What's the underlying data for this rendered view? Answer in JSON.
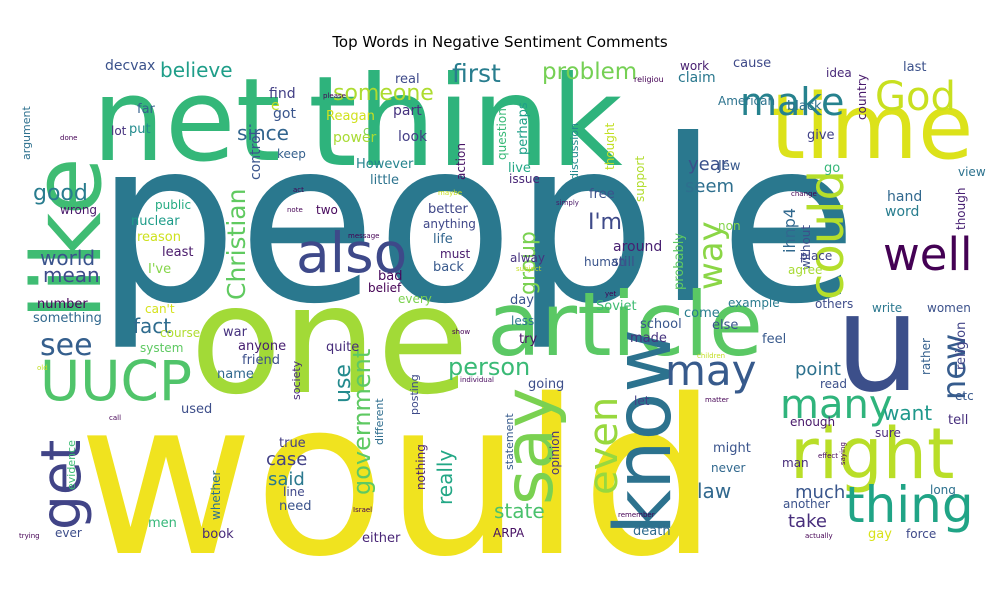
{
  "chart_data": {
    "type": "wordcloud",
    "title": "Top Words in Negative Sentiment Comments",
    "colormap": "viridis",
    "words": [
      {
        "text": "people",
        "color": "#2a788e"
      },
      {
        "text": "would",
        "color": "#f0e31f"
      },
      {
        "text": "one",
        "color": "#a2da37"
      },
      {
        "text": "like",
        "color": "#3fbc73"
      },
      {
        "text": "think",
        "color": "#2eb37c"
      },
      {
        "text": "net",
        "color": "#34b779"
      },
      {
        "text": "time",
        "color": "#dce21a"
      },
      {
        "text": "article",
        "color": "#5ac864"
      },
      {
        "text": "u",
        "color": "#3c4f8a"
      },
      {
        "text": "know",
        "color": "#2c728e"
      },
      {
        "text": "say",
        "color": "#7ad151"
      },
      {
        "text": "right",
        "color": "#b9de28"
      },
      {
        "text": "get",
        "color": "#414487"
      },
      {
        "text": "UUCP",
        "color": "#50c46a"
      },
      {
        "text": "also",
        "color": "#3e4989"
      },
      {
        "text": "could",
        "color": "#b5de2b"
      },
      {
        "text": "well",
        "color": "#440154"
      },
      {
        "text": "thing",
        "color": "#20a486"
      },
      {
        "text": "God",
        "color": "#c8e020"
      },
      {
        "text": "make",
        "color": "#26828e"
      },
      {
        "text": "many",
        "color": "#2fb47c"
      },
      {
        "text": "may",
        "color": "#375a8c"
      },
      {
        "text": "even",
        "color": "#98d83e"
      },
      {
        "text": "new",
        "color": "#365c8d"
      },
      {
        "text": "see",
        "color": "#355f8d"
      },
      {
        "text": "way",
        "color": "#8bd646"
      },
      {
        "text": "first",
        "color": "#287d8e"
      },
      {
        "text": "problem",
        "color": "#75d054"
      },
      {
        "text": "someone",
        "color": "#addc30"
      },
      {
        "text": "believe",
        "color": "#1f9e89"
      },
      {
        "text": "world",
        "color": "#3a548c"
      },
      {
        "text": "good",
        "color": "#287c8e"
      },
      {
        "text": "since",
        "color": "#32658e"
      },
      {
        "text": "mean",
        "color": "#3e4c8a"
      },
      {
        "text": "Christian",
        "color": "#60ca60"
      },
      {
        "text": "government",
        "color": "#5ec962"
      },
      {
        "text": "fact",
        "color": "#2f6c8e"
      },
      {
        "text": "person",
        "color": "#3aba76"
      },
      {
        "text": "I'm",
        "color": "#3e4a89"
      },
      {
        "text": "group",
        "color": "#7ad151"
      },
      {
        "text": "seem",
        "color": "#2e6f8e"
      },
      {
        "text": "year",
        "color": "#3b518b"
      },
      {
        "text": "point",
        "color": "#2d718e"
      },
      {
        "text": "use",
        "color": "#238a8d"
      },
      {
        "text": "want",
        "color": "#1f988b"
      },
      {
        "text": "much",
        "color": "#39568c"
      },
      {
        "text": "really",
        "color": "#22a785"
      },
      {
        "text": "case",
        "color": "#424186"
      },
      {
        "text": "said",
        "color": "#2a788e"
      },
      {
        "text": "state",
        "color": "#4ac16d"
      },
      {
        "text": "law",
        "color": "#31688e"
      },
      {
        "text": "take",
        "color": "#472d7b"
      },
      {
        "text": "ihnp4",
        "color": "#31688e"
      },
      {
        "text": "decvax",
        "color": "#3b528b"
      },
      {
        "text": "real",
        "color": "#3e4989"
      },
      {
        "text": "part",
        "color": "#46337f"
      },
      {
        "text": "Reagan",
        "color": "#d0e11c"
      },
      {
        "text": "look",
        "color": "#433e85"
      },
      {
        "text": "got",
        "color": "#39558c"
      },
      {
        "text": "control",
        "color": "#3a548c"
      },
      {
        "text": "keep",
        "color": "#35608d"
      },
      {
        "text": "power",
        "color": "#a8db34"
      },
      {
        "text": "However",
        "color": "#25848e"
      },
      {
        "text": "little",
        "color": "#2c738e"
      },
      {
        "text": "live",
        "color": "#22a785"
      },
      {
        "text": "issue",
        "color": "#482677"
      },
      {
        "text": "two",
        "color": "#46085c"
      },
      {
        "text": "public",
        "color": "#25ab82"
      },
      {
        "text": "nuclear",
        "color": "#1e9c89"
      },
      {
        "text": "reason",
        "color": "#cde11d"
      },
      {
        "text": "least",
        "color": "#48186a"
      },
      {
        "text": "I've",
        "color": "#86d549"
      },
      {
        "text": "far",
        "color": "#35608d"
      },
      {
        "text": "lot",
        "color": "#46327e"
      },
      {
        "text": "put",
        "color": "#228b8d"
      },
      {
        "text": "wrong",
        "color": "#48186a"
      },
      {
        "text": "argument",
        "color": "#2d708e"
      },
      {
        "text": "find",
        "color": "#423f85"
      },
      {
        "text": "e",
        "color": "#c2df23"
      },
      {
        "text": "c",
        "color": "#7fd34e"
      },
      {
        "text": "action",
        "color": "#471365"
      },
      {
        "text": "question",
        "color": "#38b977"
      },
      {
        "text": "perhaps",
        "color": "#1fa088"
      },
      {
        "text": "discussion",
        "color": "#238a8d"
      },
      {
        "text": "thought",
        "color": "#c2df23"
      },
      {
        "text": "support",
        "color": "#b2dd2d"
      },
      {
        "text": "probably",
        "color": "#5ec962"
      },
      {
        "text": "human",
        "color": "#3a548c"
      },
      {
        "text": "free",
        "color": "#3b528b"
      },
      {
        "text": "better",
        "color": "#3f4788"
      },
      {
        "text": "anything",
        "color": "#3f4788"
      },
      {
        "text": "life",
        "color": "#32658e"
      },
      {
        "text": "must",
        "color": "#481b6d"
      },
      {
        "text": "still",
        "color": "#3c4f8a"
      },
      {
        "text": "around",
        "color": "#482071"
      },
      {
        "text": "back",
        "color": "#38598c"
      },
      {
        "text": "non",
        "color": "#84d44b"
      },
      {
        "text": "Jew",
        "color": "#38588c"
      },
      {
        "text": "American",
        "color": "#2c738e"
      },
      {
        "text": "work",
        "color": "#482071"
      },
      {
        "text": "claim",
        "color": "#2a788e"
      },
      {
        "text": "cause",
        "color": "#3e4989"
      },
      {
        "text": "last",
        "color": "#3b518b"
      },
      {
        "text": "idea",
        "color": "#482878"
      },
      {
        "text": "country",
        "color": "#481a6c"
      },
      {
        "text": "black",
        "color": "#2e6e8e"
      },
      {
        "text": "give",
        "color": "#414287"
      },
      {
        "text": "go",
        "color": "#35b779"
      },
      {
        "text": "view",
        "color": "#2c728e"
      },
      {
        "text": "hand",
        "color": "#31688e"
      },
      {
        "text": "word",
        "color": "#287d8e"
      },
      {
        "text": "though",
        "color": "#482173"
      },
      {
        "text": "without",
        "color": "#3c4f8a"
      },
      {
        "text": "place",
        "color": "#414487"
      },
      {
        "text": "agree",
        "color": "#a8db34"
      },
      {
        "text": "others",
        "color": "#3e4c8a"
      },
      {
        "text": "example",
        "color": "#297b8e"
      },
      {
        "text": "write",
        "color": "#2a778e"
      },
      {
        "text": "women",
        "color": "#3b518b"
      },
      {
        "text": "religion",
        "color": "#414487"
      },
      {
        "text": "rather",
        "color": "#35608d"
      },
      {
        "text": "read",
        "color": "#3c508b"
      },
      {
        "text": "etc",
        "color": "#38588c"
      },
      {
        "text": "tell",
        "color": "#472f7d"
      },
      {
        "text": "sure",
        "color": "#4d2d7c"
      },
      {
        "text": "feel",
        "color": "#38598c"
      },
      {
        "text": "enough",
        "color": "#48186a"
      },
      {
        "text": "might",
        "color": "#3a548c"
      },
      {
        "text": "never",
        "color": "#31688e"
      },
      {
        "text": "man",
        "color": "#472c7a"
      },
      {
        "text": "another",
        "color": "#3b528b"
      },
      {
        "text": "long",
        "color": "#2c718e"
      },
      {
        "text": "force",
        "color": "#3e4989"
      },
      {
        "text": "gay",
        "color": "#d8e219"
      },
      {
        "text": "death",
        "color": "#2f6b8e"
      },
      {
        "text": "ARPA",
        "color": "#471164"
      },
      {
        "text": "either",
        "color": "#482576"
      },
      {
        "text": "book",
        "color": "#472a7a"
      },
      {
        "text": "men",
        "color": "#35b779"
      },
      {
        "text": "ever",
        "color": "#3d4d8a"
      },
      {
        "text": "evidence",
        "color": "#3dbc74"
      },
      {
        "text": "whether",
        "color": "#2d708e"
      },
      {
        "text": "need",
        "color": "#3a538b"
      },
      {
        "text": "line",
        "color": "#3f4889"
      },
      {
        "text": "true",
        "color": "#433d84"
      },
      {
        "text": "nothing",
        "color": "#481f70"
      },
      {
        "text": "different",
        "color": "#2e6d8e"
      },
      {
        "text": "statement",
        "color": "#375b8d"
      },
      {
        "text": "opinion",
        "color": "#46337e"
      },
      {
        "text": "posting",
        "color": "#3e4a89"
      },
      {
        "text": "society",
        "color": "#482979"
      },
      {
        "text": "quite",
        "color": "#472d7b"
      },
      {
        "text": "anyone",
        "color": "#482071"
      },
      {
        "text": "friend",
        "color": "#3c508b"
      },
      {
        "text": "name",
        "color": "#31688e"
      },
      {
        "text": "war",
        "color": "#46327e"
      },
      {
        "text": "course",
        "color": "#b0dd2f"
      },
      {
        "text": "system",
        "color": "#5ec962"
      },
      {
        "text": "used",
        "color": "#3d4e8a"
      },
      {
        "text": "can't",
        "color": "#d5e21a"
      },
      {
        "text": "something",
        "color": "#31688e"
      },
      {
        "text": "number",
        "color": "#46075a"
      },
      {
        "text": "every",
        "color": "#7cd250"
      },
      {
        "text": "belief",
        "color": "#440154"
      },
      {
        "text": "bad",
        "color": "#46085c"
      },
      {
        "text": "alway",
        "color": "#46327e"
      },
      {
        "text": "day",
        "color": "#3a548c"
      },
      {
        "text": "less",
        "color": "#2a788e"
      },
      {
        "text": "try",
        "color": "#471164"
      },
      {
        "text": "going",
        "color": "#3d4e8a"
      },
      {
        "text": "let",
        "color": "#433e85"
      },
      {
        "text": "Soviet",
        "color": "#3fbc73"
      },
      {
        "text": "school",
        "color": "#39568c"
      },
      {
        "text": "come",
        "color": "#287d8e"
      },
      {
        "text": "made",
        "color": "#46337e"
      },
      {
        "text": "else",
        "color": "#3a548c"
      },
      {
        "text": "religiou",
        "color": "#440154"
      },
      {
        "text": "please",
        "color": "#440154"
      },
      {
        "text": "done",
        "color": "#440154"
      },
      {
        "text": "act",
        "color": "#440154"
      },
      {
        "text": "note",
        "color": "#440154"
      },
      {
        "text": "maybe",
        "color": "#c8e020"
      },
      {
        "text": "simply",
        "color": "#481668"
      },
      {
        "text": "message",
        "color": "#440154"
      },
      {
        "text": "subject",
        "color": "#c2df23"
      },
      {
        "text": "yet",
        "color": "#440154"
      },
      {
        "text": "show",
        "color": "#440154"
      },
      {
        "text": "old",
        "color": "#c2df23"
      },
      {
        "text": "call",
        "color": "#440154"
      },
      {
        "text": "individual",
        "color": "#46085c"
      },
      {
        "text": "matter",
        "color": "#440154"
      },
      {
        "text": "children",
        "color": "#c2df23"
      },
      {
        "text": "change",
        "color": "#440154"
      },
      {
        "text": "saying",
        "color": "#440154"
      },
      {
        "text": "effect",
        "color": "#46085c"
      },
      {
        "text": "remember",
        "color": "#440154"
      },
      {
        "text": "trying",
        "color": "#440154"
      },
      {
        "text": "Israel",
        "color": "#440154"
      },
      {
        "text": "actually",
        "color": "#440154"
      }
    ]
  }
}
